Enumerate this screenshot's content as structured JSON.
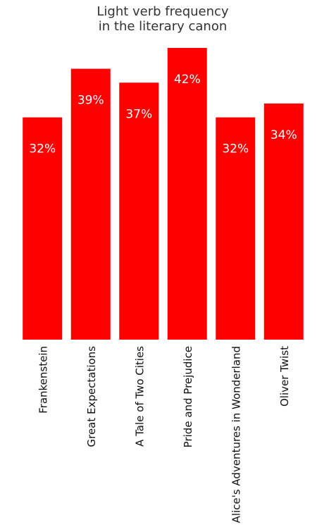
{
  "chart_data": {
    "type": "bar",
    "title": "Light verb frequency\nin the literary canon",
    "xlabel": "",
    "ylabel": "",
    "categories": [
      "Frankenstein",
      "Great Expectations",
      "A Tale of Two Cities",
      "Pride and Prejudice",
      "Alice's Adventures in Wonderland",
      "Oliver Twist"
    ],
    "values": [
      32,
      39,
      37,
      42,
      32,
      34
    ],
    "value_labels": [
      "32%",
      "39%",
      "37%",
      "42%",
      "32%",
      "34%"
    ],
    "ylim": [
      0,
      42
    ],
    "value_unit": "%",
    "bar_color": "#fe0000",
    "label_color": "#ffffff",
    "text_color": "#333333",
    "grid": false,
    "legend": "none",
    "y_axis_visible": false
  }
}
